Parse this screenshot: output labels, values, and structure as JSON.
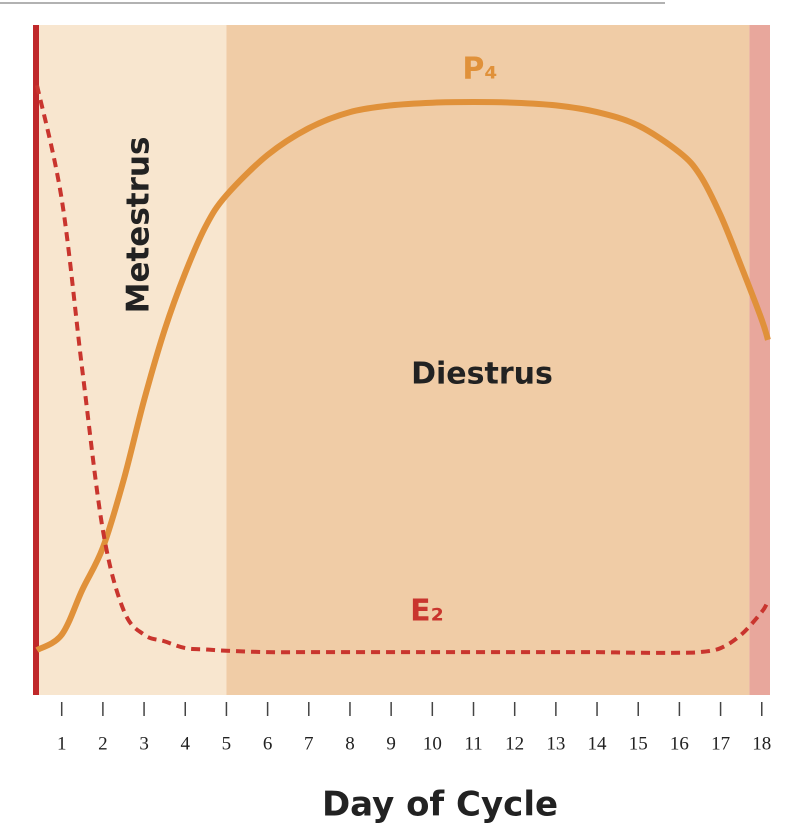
{
  "chart_data": {
    "type": "line",
    "x_label": "Day of Cycle",
    "xlim": [
      0.4,
      18.2
    ],
    "ylim": [
      0,
      100
    ],
    "xticks": [
      1,
      2,
      3,
      4,
      5,
      6,
      7,
      8,
      9,
      10,
      11,
      12,
      13,
      14,
      15,
      16,
      17,
      18
    ],
    "phases": [
      {
        "label": "Metestrus",
        "start": 0.4,
        "end": 5.0,
        "color": "#f8e6cf"
      },
      {
        "label": "Diestrus",
        "start": 5.0,
        "end": 17.7,
        "color": "#f0cca6"
      },
      {
        "start": 17.7,
        "end": 18.2,
        "color": "#e8a79c"
      }
    ],
    "x": [
      0.4,
      1,
      1.5,
      2,
      2.5,
      3,
      3.5,
      4,
      4.5,
      5,
      6,
      7,
      8,
      9,
      10,
      11,
      12,
      13,
      14,
      15,
      16,
      16.5,
      17,
      17.5,
      18,
      18.15
    ],
    "series": [
      {
        "name": "P₄",
        "color": "#e0913a",
        "dashed": false,
        "values": [
          6.7,
          9,
          15.7,
          22,
          32,
          44,
          54.5,
          63,
          70,
          74.6,
          80.6,
          84.6,
          87,
          88,
          88.4,
          88.5,
          88.4,
          88,
          87,
          85,
          81,
          77.6,
          71.6,
          64,
          56,
          53
        ]
      },
      {
        "name": "E₂",
        "color": "#c9352e",
        "dashed": true,
        "values": [
          91,
          74,
          48.5,
          24.6,
          12.7,
          9,
          8,
          7,
          6.8,
          6.6,
          6.4,
          6.4,
          6.4,
          6.4,
          6.4,
          6.4,
          6.4,
          6.4,
          6.4,
          6.3,
          6.3,
          6.4,
          7,
          9,
          12.4,
          14
        ]
      }
    ]
  }
}
